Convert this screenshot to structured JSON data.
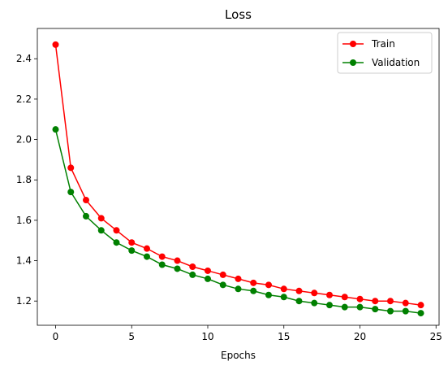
{
  "chart_data": {
    "type": "line",
    "title": "Loss",
    "xlabel": "Epochs",
    "ylabel": "",
    "xlim": [
      -1.2,
      25.2
    ],
    "ylim": [
      1.08,
      2.55
    ],
    "xticks": [
      0,
      5,
      10,
      15,
      20,
      25
    ],
    "yticks": [
      1.2,
      1.4,
      1.6,
      1.8,
      2.0,
      2.2,
      2.4
    ],
    "xtick_labels": [
      "0",
      "5",
      "10",
      "15",
      "20",
      "25"
    ],
    "ytick_labels": [
      "1.2",
      "1.4",
      "1.6",
      "1.8",
      "2.0",
      "2.2",
      "2.4"
    ],
    "grid": false,
    "legend_position": "top-right",
    "x": [
      0,
      1,
      2,
      3,
      4,
      5,
      6,
      7,
      8,
      9,
      10,
      11,
      12,
      13,
      14,
      15,
      16,
      17,
      18,
      19,
      20,
      21,
      22,
      23,
      24
    ],
    "series": [
      {
        "name": "Train",
        "color": "#ff0000",
        "values": [
          2.47,
          1.86,
          1.7,
          1.61,
          1.55,
          1.49,
          1.46,
          1.42,
          1.4,
          1.37,
          1.35,
          1.33,
          1.31,
          1.29,
          1.28,
          1.26,
          1.25,
          1.24,
          1.23,
          1.22,
          1.21,
          1.2,
          1.2,
          1.19,
          1.18
        ]
      },
      {
        "name": "Validation",
        "color": "#008000",
        "values": [
          2.05,
          1.74,
          1.62,
          1.55,
          1.49,
          1.45,
          1.42,
          1.38,
          1.36,
          1.33,
          1.31,
          1.28,
          1.26,
          1.25,
          1.23,
          1.22,
          1.2,
          1.19,
          1.18,
          1.17,
          1.17,
          1.16,
          1.15,
          1.15,
          1.14
        ]
      }
    ]
  }
}
